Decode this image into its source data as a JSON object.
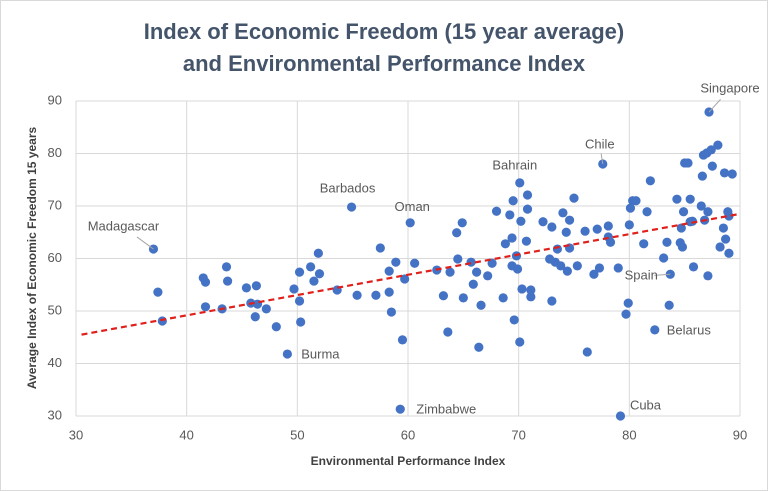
{
  "chart_data": {
    "type": "scatter",
    "title": [
      "Index of Economic Freedom (15 year average)",
      "and Environmental Performance Index"
    ],
    "x_label": "Environmental Performance Index",
    "y_label": "Average Index of Economic Freedom 15 years",
    "xlim": [
      30,
      90
    ],
    "xticks": [
      30,
      40,
      50,
      60,
      70,
      80,
      90
    ],
    "ylim": [
      30,
      90
    ],
    "yticks": [
      30,
      40,
      50,
      60,
      70,
      80,
      90
    ],
    "grid": true,
    "series": [
      {
        "color": "#4472c4",
        "x": [
          37.0,
          37.4,
          37.8,
          41.5,
          41.7,
          41.7,
          43.2,
          43.6,
          43.7,
          45.4,
          45.8,
          46.3,
          46.2,
          46.4,
          47.2,
          48.1,
          49.1,
          49.7,
          50.2,
          50.2,
          50.3,
          51.2,
          51.5,
          51.9,
          52.0,
          53.6,
          54.9,
          55.4,
          57.1,
          57.5,
          58.3,
          58.3,
          58.5,
          58.9,
          59.5,
          59.3,
          59.7,
          60.2,
          60.6,
          62.6,
          63.2,
          63.6,
          63.8,
          64.4,
          64.5,
          64.9,
          65.0,
          65.7,
          65.9,
          66.2,
          66.4,
          66.6,
          67.2,
          67.6,
          68.0,
          68.6,
          68.8,
          69.2,
          69.4,
          69.4,
          69.5,
          69.6,
          69.8,
          69.9,
          70.1,
          70.1,
          70.2,
          70.3,
          70.7,
          70.8,
          70.8,
          71.1,
          71.1,
          72.2,
          72.8,
          73.0,
          73.0,
          73.3,
          73.5,
          73.8,
          74.0,
          74.3,
          74.4,
          74.6,
          74.6,
          75.0,
          75.3,
          76.0,
          76.2,
          76.8,
          77.1,
          77.3,
          77.6,
          78.1,
          78.1,
          78.3,
          79.0,
          79.2,
          79.7,
          79.9,
          80.0,
          80.1,
          80.3,
          80.6,
          81.3,
          81.6,
          81.9,
          82.3,
          83.1,
          83.4,
          83.6,
          83.7,
          84.3,
          84.6,
          84.7,
          84.8,
          84.9,
          85.0,
          85.3,
          85.5,
          85.5,
          85.7,
          85.8,
          86.5,
          86.6,
          86.7,
          86.8,
          87.0,
          87.1,
          87.1,
          87.2,
          87.4,
          87.5,
          88.0,
          88.2,
          88.5,
          88.6,
          88.7,
          88.9,
          89.0,
          89.0,
          89.3
        ],
        "y": [
          61.8,
          53.6,
          48.1,
          56.3,
          55.5,
          50.8,
          50.4,
          58.4,
          55.7,
          54.4,
          51.5,
          54.8,
          48.9,
          51.3,
          50.4,
          47.0,
          41.8,
          54.2,
          51.9,
          57.4,
          47.9,
          58.4,
          55.7,
          61.0,
          57.1,
          54.0,
          69.8,
          53.0,
          53.0,
          62.0,
          57.6,
          53.6,
          49.8,
          59.3,
          44.5,
          31.3,
          56.1,
          66.8,
          59.1,
          57.8,
          52.9,
          46.0,
          57.4,
          64.9,
          59.9,
          66.8,
          52.5,
          59.3,
          55.1,
          57.4,
          43.1,
          51.1,
          56.7,
          59.1,
          69.0,
          52.5,
          62.8,
          68.3,
          63.9,
          58.6,
          71.0,
          48.3,
          60.5,
          58.0,
          74.4,
          44.1,
          67.1,
          54.2,
          63.3,
          69.4,
          72.1,
          54.0,
          52.7,
          67.0,
          59.9,
          51.9,
          66.0,
          59.3,
          61.8,
          58.6,
          68.7,
          65.0,
          57.6,
          62.0,
          67.3,
          71.5,
          58.6,
          65.2,
          42.2,
          57.0,
          65.6,
          58.2,
          78.0,
          64.1,
          66.2,
          63.1,
          58.2,
          30.0,
          49.4,
          51.5,
          66.4,
          69.6,
          71.0,
          71.0,
          62.8,
          68.9,
          74.8,
          46.4,
          60.1,
          63.1,
          51.1,
          57.0,
          71.3,
          63.0,
          65.8,
          62.2,
          68.9,
          78.2,
          78.2,
          71.3,
          67.0,
          67.1,
          58.4,
          70.0,
          75.7,
          79.7,
          67.3,
          80.1,
          56.7,
          68.9,
          87.9,
          80.7,
          77.6,
          81.6,
          62.2,
          65.8,
          76.3,
          63.7,
          68.9,
          68.1,
          61.0,
          76.1
        ]
      }
    ],
    "trendline": {
      "color": "#e0201b",
      "x": [
        30.5,
        90
      ],
      "y": [
        45.5,
        68.5
      ]
    },
    "annotations": [
      {
        "text": "Singapore",
        "x": 87.2,
        "y": 87.9
      },
      {
        "text": "Chile",
        "x": 77.6,
        "y": 78.0
      },
      {
        "text": "Bahrain",
        "x": 70.1,
        "y": 74.4
      },
      {
        "text": "Barbados",
        "x": 54.9,
        "y": 69.8
      },
      {
        "text": "Oman",
        "x": 60.2,
        "y": 66.8
      },
      {
        "text": "Madagascar",
        "x": 37.0,
        "y": 61.8
      },
      {
        "text": "Burma",
        "x": 49.1,
        "y": 41.8
      },
      {
        "text": "Zimbabwe",
        "x": 59.3,
        "y": 31.3
      },
      {
        "text": "Cuba",
        "x": 79.2,
        "y": 30.0
      },
      {
        "text": "Belarus",
        "x": 82.3,
        "y": 46.4
      },
      {
        "text": "Spain",
        "x": 83.7,
        "y": 57.0
      }
    ]
  }
}
